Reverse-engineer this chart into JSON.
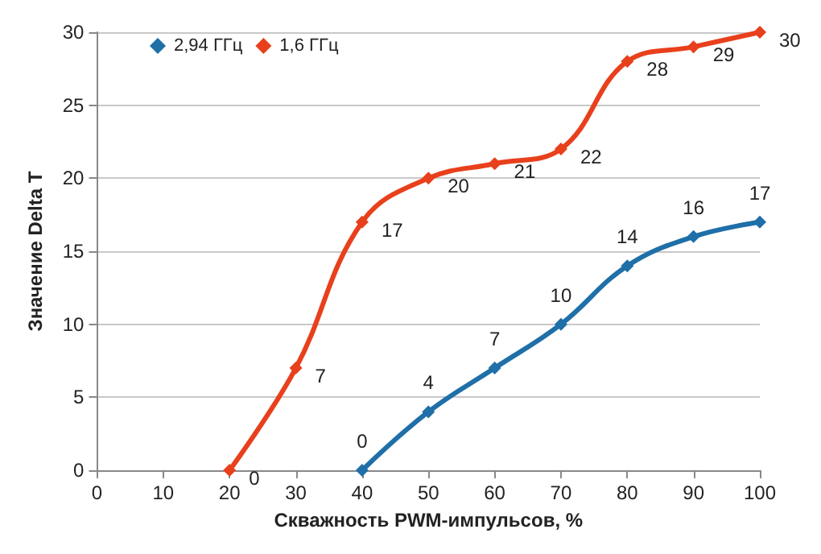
{
  "chart_data": {
    "type": "line",
    "xlabel": "Скважность PWM-импульсов, %",
    "ylabel": "Значение Delta T",
    "series": [
      {
        "name": "2,94 ГГц",
        "color": "#1f6fa8",
        "x": [
          40,
          50,
          60,
          70,
          80,
          90,
          100
        ],
        "values": [
          0,
          4,
          7,
          10,
          14,
          16,
          17
        ]
      },
      {
        "name": "1,6 ГГц",
        "color": "#e8401c",
        "x": [
          20,
          30,
          40,
          50,
          60,
          70,
          80,
          90,
          100
        ],
        "values": [
          0,
          7,
          17,
          20,
          21,
          22,
          28,
          29,
          30
        ]
      }
    ],
    "xlim": [
      0,
      100
    ],
    "xticks": [
      0,
      10,
      20,
      30,
      40,
      50,
      60,
      70,
      80,
      90,
      100
    ],
    "ylim": [
      0,
      30
    ],
    "yticks": [
      0,
      5,
      10,
      15,
      20,
      25,
      30
    ],
    "grid": "y",
    "legend": "top left",
    "marker": "diamond",
    "line_style": "solid",
    "data_labels": true
  }
}
